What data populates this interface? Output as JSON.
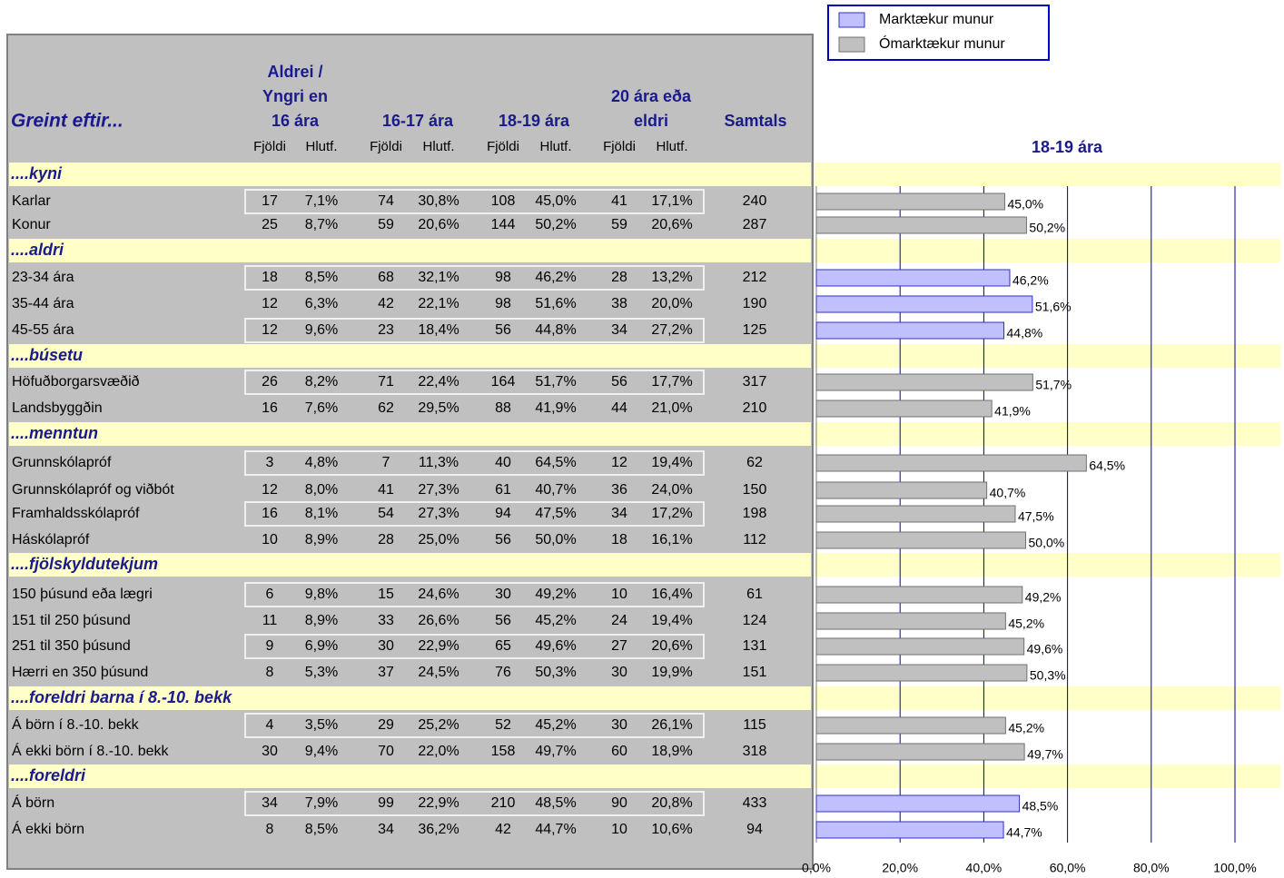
{
  "table": {
    "title": "Greint eftir...",
    "groups": [
      [
        "Aldrei /",
        "Yngri en",
        "16 ára"
      ],
      [
        "16-17 ára"
      ],
      [
        "18-19 ára"
      ],
      [
        "20 ára eða",
        "eldri"
      ],
      [
        "Samtals"
      ]
    ],
    "subheaders": [
      "Fjöldi",
      "Hlutf.",
      "Fjöldi",
      "Hlutf.",
      "Fjöldi",
      "Hlutf.",
      "Fjöldi",
      "Hlutf."
    ],
    "sections": [
      {
        "label": "....kyni",
        "rows": [
          {
            "label": "Karlar",
            "cells": [
              "17",
              "7,1%",
              "74",
              "30,8%",
              "108",
              "45,0%",
              "41",
              "17,1%",
              "240"
            ]
          },
          {
            "label": "Konur",
            "cells": [
              "25",
              "8,7%",
              "59",
              "20,6%",
              "144",
              "50,2%",
              "59",
              "20,6%",
              "287"
            ]
          }
        ]
      },
      {
        "label": "....aldri",
        "rows": [
          {
            "label": "23-34 ára",
            "cells": [
              "18",
              "8,5%",
              "68",
              "32,1%",
              "98",
              "46,2%",
              "28",
              "13,2%",
              "212"
            ]
          },
          {
            "label": "35-44 ára",
            "cells": [
              "12",
              "6,3%",
              "42",
              "22,1%",
              "98",
              "51,6%",
              "38",
              "20,0%",
              "190"
            ]
          },
          {
            "label": "45-55 ára",
            "cells": [
              "12",
              "9,6%",
              "23",
              "18,4%",
              "56",
              "44,8%",
              "34",
              "27,2%",
              "125"
            ]
          }
        ]
      },
      {
        "label": "....búsetu",
        "rows": [
          {
            "label": "Höfuðborgarsvæðið",
            "cells": [
              "26",
              "8,2%",
              "71",
              "22,4%",
              "164",
              "51,7%",
              "56",
              "17,7%",
              "317"
            ]
          },
          {
            "label": "Landsbyggðin",
            "cells": [
              "16",
              "7,6%",
              "62",
              "29,5%",
              "88",
              "41,9%",
              "44",
              "21,0%",
              "210"
            ]
          }
        ]
      },
      {
        "label": "....menntun",
        "rows": [
          {
            "label": "Grunnskólapróf",
            "cells": [
              "3",
              "4,8%",
              "7",
              "11,3%",
              "40",
              "64,5%",
              "12",
              "19,4%",
              "62"
            ]
          },
          {
            "label": "Grunnskólapróf og viðbót",
            "cells": [
              "12",
              "8,0%",
              "41",
              "27,3%",
              "61",
              "40,7%",
              "36",
              "24,0%",
              "150"
            ]
          },
          {
            "label": "Framhaldsskólapróf",
            "cells": [
              "16",
              "8,1%",
              "54",
              "27,3%",
              "94",
              "47,5%",
              "34",
              "17,2%",
              "198"
            ]
          },
          {
            "label": "Háskólapróf",
            "cells": [
              "10",
              "8,9%",
              "28",
              "25,0%",
              "56",
              "50,0%",
              "18",
              "16,1%",
              "112"
            ]
          }
        ]
      },
      {
        "label": "....fjölskyldutekjum",
        "rows": [
          {
            "label": "150 þúsund eða lægri",
            "cells": [
              "6",
              "9,8%",
              "15",
              "24,6%",
              "30",
              "49,2%",
              "10",
              "16,4%",
              "61"
            ]
          },
          {
            "label": "151 til 250 þúsund",
            "cells": [
              "11",
              "8,9%",
              "33",
              "26,6%",
              "56",
              "45,2%",
              "24",
              "19,4%",
              "124"
            ]
          },
          {
            "label": "251 til 350 þúsund",
            "cells": [
              "9",
              "6,9%",
              "30",
              "22,9%",
              "65",
              "49,6%",
              "27",
              "20,6%",
              "131"
            ]
          },
          {
            "label": "Hærri en 350 þúsund",
            "cells": [
              "8",
              "5,3%",
              "37",
              "24,5%",
              "76",
              "50,3%",
              "30",
              "19,9%",
              "151"
            ]
          }
        ]
      },
      {
        "label": "....foreldri barna í 8.-10. bekk",
        "rows": [
          {
            "label": "Á börn í 8.-10. bekk",
            "cells": [
              "4",
              "3,5%",
              "29",
              "25,2%",
              "52",
              "45,2%",
              "30",
              "26,1%",
              "115"
            ]
          },
          {
            "label": "Á ekki börn í 8.-10. bekk",
            "cells": [
              "30",
              "9,4%",
              "70",
              "22,0%",
              "158",
              "49,7%",
              "60",
              "18,9%",
              "318"
            ]
          }
        ]
      },
      {
        "label": "....foreldri",
        "rows": [
          {
            "label": "Á börn",
            "cells": [
              "34",
              "7,9%",
              "99",
              "22,9%",
              "210",
              "48,5%",
              "90",
              "20,8%",
              "433"
            ]
          },
          {
            "label": "Á ekki börn",
            "cells": [
              "8",
              "8,5%",
              "34",
              "36,2%",
              "42",
              "44,7%",
              "10",
              "10,6%",
              "94"
            ]
          }
        ]
      }
    ]
  },
  "chart_data": {
    "type": "bar",
    "orientation": "horizontal",
    "title": "18-19 ára",
    "series": [
      {
        "name": "Marktækur munur",
        "color": "#c0c0ff",
        "values": [
          null,
          null,
          46.2,
          51.6,
          44.8,
          null,
          null,
          null,
          null,
          null,
          null,
          null,
          null,
          null,
          null,
          null,
          null,
          48.5,
          44.7
        ],
        "value_labels": [
          null,
          null,
          "46,2%",
          "51,6%",
          "44,8%",
          null,
          null,
          null,
          null,
          null,
          null,
          null,
          null,
          null,
          null,
          null,
          null,
          "48,5%",
          "44,7%"
        ]
      },
      {
        "name": "Ómarktækur munur",
        "color": "#c0c0c0",
        "values": [
          45.0,
          50.2,
          null,
          null,
          null,
          51.7,
          41.9,
          64.5,
          40.7,
          47.5,
          50.0,
          49.2,
          45.2,
          49.6,
          50.3,
          45.2,
          49.7,
          null,
          null
        ],
        "value_labels": [
          "45,0%",
          "50,2%",
          null,
          null,
          null,
          "51,7%",
          "41,9%",
          "64,5%",
          "40,7%",
          "47,5%",
          "50,0%",
          "49,2%",
          "45,2%",
          "49,6%",
          "50,3%",
          "45,2%",
          "49,7%",
          null,
          null
        ]
      }
    ],
    "xlim": [
      0,
      100
    ],
    "xticks": [
      {
        "value": 0,
        "label": "0,0%"
      },
      {
        "value": 20,
        "label": "20,0%"
      },
      {
        "value": 40,
        "label": "40,0%"
      },
      {
        "value": 60,
        "label": "60,0%"
      },
      {
        "value": 80,
        "label": "80,0%"
      },
      {
        "value": 100,
        "label": "100,0%"
      }
    ],
    "grid": true
  }
}
